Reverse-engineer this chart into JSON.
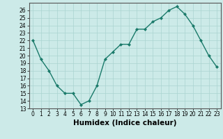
{
  "x": [
    0,
    1,
    2,
    3,
    4,
    5,
    6,
    7,
    8,
    9,
    10,
    11,
    12,
    13,
    14,
    15,
    16,
    17,
    18,
    19,
    20,
    21,
    22,
    23
  ],
  "y": [
    22,
    19.5,
    18,
    16,
    15,
    15,
    13.5,
    14,
    16,
    19.5,
    20.5,
    21.5,
    21.5,
    23.5,
    23.5,
    24.5,
    25,
    26,
    26.5,
    25.5,
    24,
    22,
    20,
    18.5
  ],
  "line_color": "#1a7a6a",
  "marker": "D",
  "marker_size": 2.0,
  "bg_color": "#cceae8",
  "grid_color": "#aad4d0",
  "xlabel": "Humidex (Indice chaleur)",
  "xlim": [
    -0.5,
    23.5
  ],
  "ylim": [
    13,
    27
  ],
  "yticks": [
    13,
    14,
    15,
    16,
    17,
    18,
    19,
    20,
    21,
    22,
    23,
    24,
    25,
    26
  ],
  "xticks": [
    0,
    1,
    2,
    3,
    4,
    5,
    6,
    7,
    8,
    9,
    10,
    11,
    12,
    13,
    14,
    15,
    16,
    17,
    18,
    19,
    20,
    21,
    22,
    23
  ],
  "xtick_labels": [
    "0",
    "1",
    "2",
    "3",
    "4",
    "5",
    "6",
    "7",
    "8",
    "9",
    "10",
    "11",
    "12",
    "13",
    "14",
    "15",
    "16",
    "17",
    "18",
    "19",
    "20",
    "21",
    "22",
    "23"
  ],
  "ytick_labels": [
    "13",
    "14",
    "15",
    "16",
    "17",
    "18",
    "19",
    "20",
    "21",
    "22",
    "23",
    "24",
    "25",
    "26"
  ],
  "tick_fontsize": 5.5,
  "xlabel_fontsize": 7.5,
  "linewidth": 1.0
}
